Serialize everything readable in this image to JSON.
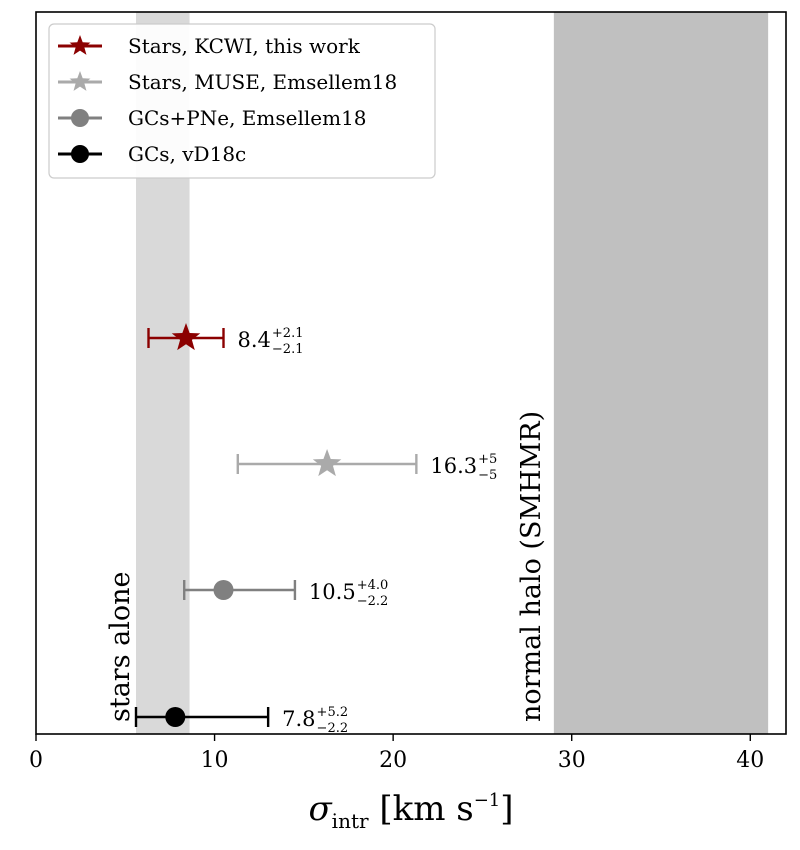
{
  "chart_data": {
    "type": "scatter",
    "xlabel": {
      "symbol": "σ",
      "subscript": "intr",
      "units": "[km s",
      "units_exp": "−1",
      "units_close": "]"
    },
    "ylabel": "",
    "xlim": [
      0,
      42
    ],
    "xticks": [
      0,
      10,
      20,
      30,
      40
    ],
    "grid": false,
    "legend_position": "upper-left",
    "bands": [
      {
        "name": "stars alone",
        "x_range": [
          5.6,
          8.6
        ],
        "color": "#d9d9d9"
      },
      {
        "name": "normal halo (SMHMR)",
        "x_range": [
          29,
          41
        ],
        "color": "#c0c0c0"
      }
    ],
    "series": [
      {
        "name": "Stars, KCWI, this work",
        "marker": "star",
        "color": "#8b0000",
        "value": 8.4,
        "err_plus": 2.1,
        "err_minus": 2.1,
        "label_main": "8.4",
        "label_plus": "+2.1",
        "label_minus": "−2.1"
      },
      {
        "name": "Stars, MUSE, Emsellem18",
        "marker": "star",
        "color": "#aaaaaa",
        "value": 16.3,
        "err_plus": 5,
        "err_minus": 5,
        "label_main": "16.3",
        "label_plus": "+5",
        "label_minus": "−5"
      },
      {
        "name": "GCs+PNe, Emsellem18",
        "marker": "circle",
        "color": "#808080",
        "value": 10.5,
        "err_plus": 4.0,
        "err_minus": 2.2,
        "label_main": "10.5",
        "label_plus": "+4.0",
        "label_minus": "−2.2"
      },
      {
        "name": "GCs, vD18c",
        "marker": "circle",
        "color": "#000000",
        "value": 7.8,
        "err_plus": 5.2,
        "err_minus": 2.2,
        "label_main": "7.8",
        "label_plus": "+5.2",
        "label_minus": "−2.2"
      }
    ]
  }
}
